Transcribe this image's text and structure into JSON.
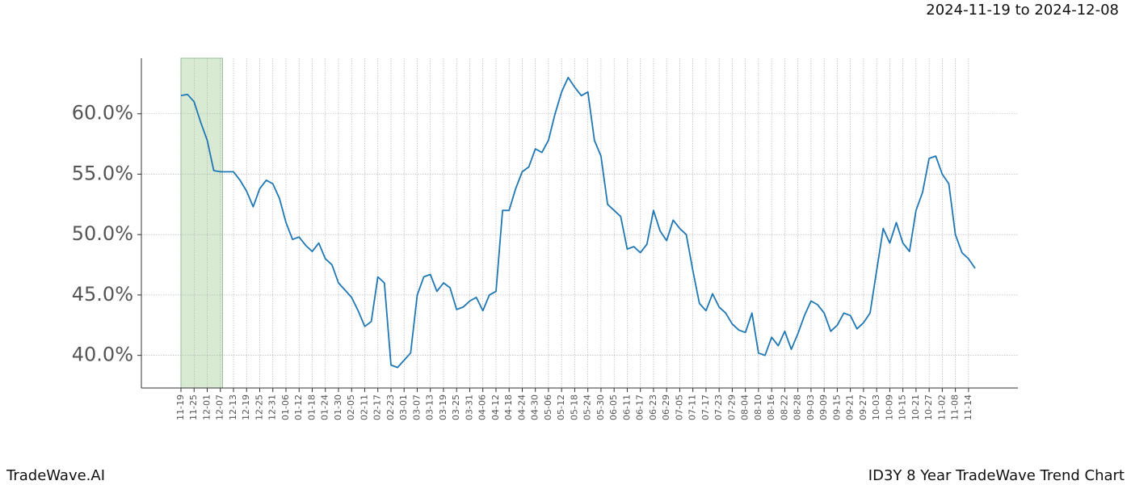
{
  "chart_data": {
    "type": "line",
    "title": "ID3Y 8 Year TradeWave Trend Chart",
    "subtitle": "2024-11-19 to 2024-12-08",
    "brand": "TradeWave.AI",
    "highlight": [
      "11-19",
      "12-08"
    ],
    "highlight_color": "#d9ead3",
    "grid": true,
    "x": [
      "11-19",
      "11-22",
      "11-25",
      "11-28",
      "12-01",
      "12-04",
      "12-07",
      "12-10",
      "12-13",
      "12-16",
      "12-19",
      "12-22",
      "12-25",
      "12-28",
      "12-31",
      "01-03",
      "01-06",
      "01-09",
      "01-12",
      "01-15",
      "01-18",
      "01-21",
      "01-24",
      "01-27",
      "01-30",
      "02-02",
      "02-05",
      "02-08",
      "02-11",
      "02-14",
      "02-17",
      "02-20",
      "02-23",
      "02-26",
      "03-01",
      "03-04",
      "03-07",
      "03-10",
      "03-13",
      "03-16",
      "03-19",
      "03-22",
      "03-25",
      "03-28",
      "03-31",
      "04-03",
      "04-06",
      "04-09",
      "04-12",
      "04-15",
      "04-18",
      "04-21",
      "04-24",
      "04-27",
      "04-30",
      "05-03",
      "05-06",
      "05-09",
      "05-12",
      "05-15",
      "05-18",
      "05-21",
      "05-24",
      "05-27",
      "05-30",
      "06-02",
      "06-05",
      "06-08",
      "06-11",
      "06-14",
      "06-17",
      "06-20",
      "06-23",
      "06-26",
      "06-29",
      "07-02",
      "07-05",
      "07-08",
      "07-11",
      "07-14",
      "07-17",
      "07-20",
      "07-23",
      "07-26",
      "07-29",
      "08-01",
      "08-04",
      "08-07",
      "08-10",
      "08-13",
      "08-16",
      "08-19",
      "08-22",
      "08-25",
      "08-28",
      "08-31",
      "09-03",
      "09-06",
      "09-09",
      "09-12",
      "09-15",
      "09-18",
      "09-21",
      "09-24",
      "09-27",
      "09-30",
      "10-03",
      "10-06",
      "10-09",
      "10-12",
      "10-15",
      "10-18",
      "10-21",
      "10-24",
      "10-27",
      "10-30",
      "11-02",
      "11-05",
      "11-08",
      "11-11",
      "11-14",
      "11-17"
    ],
    "series": [
      {
        "name": "ID3Y",
        "color": "#1f77b4",
        "values": [
          61.5,
          61.6,
          61.0,
          59.3,
          57.8,
          55.3,
          55.2,
          55.2,
          55.2,
          54.5,
          53.6,
          52.3,
          53.8,
          54.5,
          54.2,
          53.0,
          51.0,
          49.6,
          49.8,
          49.1,
          48.6,
          49.3,
          48.0,
          47.5,
          46.0,
          45.4,
          44.8,
          43.7,
          42.4,
          42.8,
          46.5,
          46.0,
          39.2,
          39.0,
          39.6,
          40.2,
          45.0,
          46.5,
          46.7,
          45.3,
          46.0,
          45.6,
          43.8,
          44.0,
          44.5,
          44.8,
          43.7,
          45.0,
          45.3,
          52.0,
          52.0,
          53.8,
          55.2,
          55.6,
          57.1,
          56.8,
          57.8,
          60.0,
          61.8,
          63.0,
          62.2,
          61.5,
          61.8,
          57.8,
          56.5,
          52.5,
          52.0,
          51.5,
          48.8,
          49.0,
          48.5,
          49.2,
          52.0,
          50.3,
          49.5,
          51.2,
          50.5,
          50.0,
          47.0,
          44.3,
          43.7,
          45.1,
          44.0,
          43.5,
          42.6,
          42.1,
          41.9,
          43.5,
          40.2,
          40.0,
          41.5,
          40.8,
          42.0,
          40.5,
          41.8,
          43.3,
          44.5,
          44.2,
          43.5,
          42.0,
          42.5,
          43.5,
          43.3,
          42.2,
          42.7,
          43.5,
          47.0,
          50.5,
          49.3,
          51.0,
          49.3,
          48.6,
          52.0,
          53.5,
          56.3,
          56.5,
          55.0,
          54.2,
          50.0,
          48.5,
          48.0,
          47.2
        ]
      }
    ],
    "xticks": [
      "11-19",
      "11-25",
      "12-01",
      "12-07",
      "12-13",
      "12-19",
      "12-25",
      "12-31",
      "01-06",
      "01-12",
      "01-18",
      "01-24",
      "01-30",
      "02-05",
      "02-11",
      "02-17",
      "02-23",
      "03-01",
      "03-07",
      "03-13",
      "03-19",
      "03-25",
      "03-31",
      "04-06",
      "04-12",
      "04-18",
      "04-24",
      "04-30",
      "05-06",
      "05-12",
      "05-18",
      "05-24",
      "05-30",
      "06-05",
      "06-11",
      "06-17",
      "06-23",
      "06-29",
      "07-05",
      "07-11",
      "07-17",
      "07-23",
      "07-29",
      "08-04",
      "08-10",
      "08-16",
      "08-22",
      "08-28",
      "09-03",
      "09-09",
      "09-15",
      "09-21",
      "09-27",
      "10-03",
      "10-09",
      "10-15",
      "10-21",
      "10-27",
      "11-02",
      "11-08",
      "11-14"
    ],
    "ylim": [
      37.3,
      64.6
    ],
    "yticks": [
      {
        "value": 40,
        "label": "40.0%"
      },
      {
        "value": 45,
        "label": "45.0%"
      },
      {
        "value": 50,
        "label": "50.0%"
      },
      {
        "value": 55,
        "label": "55.0%"
      },
      {
        "value": 60,
        "label": "60.0%"
      }
    ]
  }
}
